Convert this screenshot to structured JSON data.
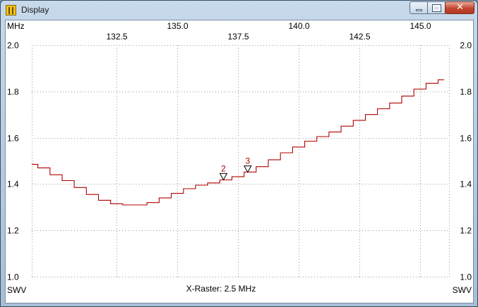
{
  "window": {
    "title": "Display",
    "close_glyph": "✕"
  },
  "chart_data": {
    "type": "line",
    "unit_label": "MHz",
    "y_unit_label": "SWV",
    "raster_label": "X-Raster: 2.5 MHz",
    "xlim": [
      129.0,
      146.2
    ],
    "ylim": [
      1.0,
      2.0
    ],
    "x_ticks_top": [
      "135.0",
      "140.0",
      "145.0"
    ],
    "x_ticks_top_values": [
      135.0,
      140.0,
      145.0
    ],
    "x_ticks_bottom": [
      "132.5",
      "137.5",
      "142.5"
    ],
    "x_ticks_bottom_values": [
      132.5,
      137.5,
      142.5
    ],
    "y_ticks": [
      "2.0",
      "1.8",
      "1.6",
      "1.4",
      "1.2",
      "1.0"
    ],
    "y_ticks_values": [
      2.0,
      1.8,
      1.6,
      1.4,
      1.2,
      1.0
    ],
    "grid": true,
    "line_color": "#b00000",
    "series": [
      {
        "x": [
          129.0,
          129.5,
          130.0,
          130.5,
          131.0,
          131.5,
          132.0,
          132.5,
          133.0,
          133.5,
          134.0,
          134.5,
          135.0,
          135.5,
          136.0,
          136.5,
          137.0,
          137.5,
          138.0,
          138.5,
          139.0,
          139.5,
          140.0,
          140.5,
          141.0,
          141.5,
          142.0,
          142.5,
          143.0,
          143.5,
          144.0,
          144.5,
          145.0,
          145.5,
          146.0
        ],
        "y": [
          1.485,
          1.47,
          1.44,
          1.415,
          1.385,
          1.355,
          1.33,
          1.315,
          1.31,
          1.31,
          1.32,
          1.34,
          1.36,
          1.38,
          1.395,
          1.405,
          1.418,
          1.432,
          1.452,
          1.475,
          1.505,
          1.535,
          1.56,
          1.585,
          1.605,
          1.625,
          1.65,
          1.675,
          1.7,
          1.725,
          1.75,
          1.78,
          1.81,
          1.835,
          1.85
        ]
      }
    ],
    "markers": [
      {
        "label": "2",
        "x": 136.9
      },
      {
        "label": "3",
        "x": 137.9
      }
    ]
  }
}
